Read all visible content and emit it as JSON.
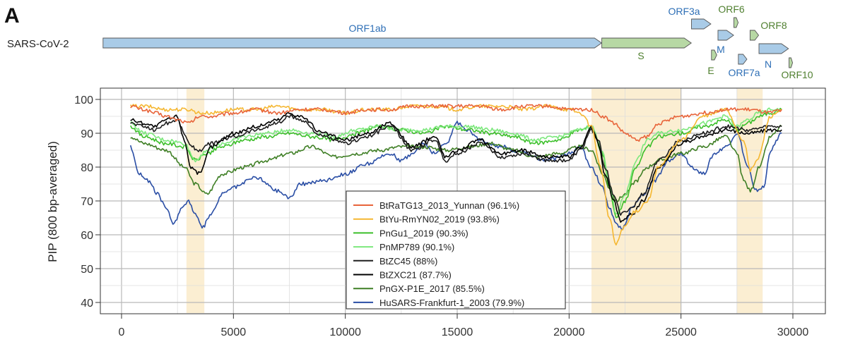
{
  "panel_label": "A",
  "genome": {
    "name": "SARS-CoV-2",
    "genes": [
      {
        "label": "ORF1ab",
        "start": 266,
        "end": 21555,
        "color": "#a9cbe7",
        "text_color": "#2e6fb6",
        "label_pos": "above"
      },
      {
        "label": "S",
        "start": 21563,
        "end": 25384,
        "color": "#b7d8a4",
        "text_color": "#4f7f2f",
        "label_pos": "below"
      },
      {
        "label": "ORF3a",
        "start": 25393,
        "end": 26220,
        "color": "#a9cbe7",
        "text_color": "#2e6fb6",
        "label_pos": "above"
      },
      {
        "label": "E",
        "start": 26245,
        "end": 26472,
        "color": "#b7d8a4",
        "text_color": "#4f7f2f",
        "label_pos": "below"
      },
      {
        "label": "M",
        "start": 26523,
        "end": 27191,
        "color": "#a9cbe7",
        "text_color": "#2e6fb6",
        "label_pos": "below"
      },
      {
        "label": "ORF6",
        "start": 27202,
        "end": 27387,
        "color": "#b7d8a4",
        "text_color": "#4f7f2f",
        "label_pos": "above"
      },
      {
        "label": "ORF7a",
        "start": 27394,
        "end": 27759,
        "color": "#a9cbe7",
        "text_color": "#2e6fb6",
        "label_pos": "below"
      },
      {
        "label": "ORF8",
        "start": 27894,
        "end": 28259,
        "color": "#b7d8a4",
        "text_color": "#4f7f2f",
        "label_pos": "above"
      },
      {
        "label": "N",
        "start": 28274,
        "end": 29533,
        "color": "#a9cbe7",
        "text_color": "#2e6fb6",
        "label_pos": "below"
      },
      {
        "label": "ORF10",
        "start": 29558,
        "end": 29674,
        "color": "#b7d8a4",
        "text_color": "#4f7f2f",
        "label_pos": "below"
      }
    ]
  },
  "chart_data": {
    "type": "line",
    "title": "",
    "xlabel": "",
    "ylabel": "PIP (800 bp-averaged)",
    "xlim": [
      0,
      30000
    ],
    "ylim": [
      38,
      101
    ],
    "xticks": [
      0,
      5000,
      10000,
      15000,
      20000,
      25000,
      30000
    ],
    "yticks": [
      40,
      50,
      60,
      70,
      80,
      90,
      100
    ],
    "grid": true,
    "highlight_regions": [
      [
        2900,
        3700
      ],
      [
        21000,
        25000
      ],
      [
        27500,
        28650
      ]
    ],
    "highlight_color": "#fbeed2",
    "legend_position": "bottom-center",
    "series": [
      {
        "name": "BtRaTG13_2013_Yunnan (96.1%)",
        "color": "#e8643a",
        "x": [
          400,
          1000,
          1500,
          2000,
          2500,
          3000,
          3500,
          4000,
          5000,
          6000,
          7000,
          8000,
          9000,
          10000,
          11000,
          12000,
          13000,
          14000,
          15000,
          16000,
          17000,
          18000,
          19000,
          20000,
          21000,
          21500,
          22000,
          22500,
          23000,
          23500,
          24000,
          25000,
          26000,
          27000,
          28000,
          29000,
          29500
        ],
        "y": [
          98,
          97,
          96,
          95,
          94,
          93,
          95,
          95,
          96,
          97,
          96,
          97,
          97,
          96,
          97,
          97,
          98,
          98,
          98,
          98,
          97,
          98,
          98,
          97,
          97,
          95,
          93,
          90,
          88,
          89,
          93,
          95,
          96,
          97,
          97,
          96,
          97
        ]
      },
      {
        "name": "BtYu-RmYN02_2019 (93.8%)",
        "color": "#f5b731",
        "x": [
          400,
          1000,
          2000,
          3000,
          3500,
          4000,
          5000,
          6000,
          7000,
          8000,
          9000,
          10000,
          11000,
          12000,
          13000,
          14000,
          15000,
          16000,
          17000,
          18000,
          19000,
          20000,
          20500,
          21000,
          21400,
          21800,
          22100,
          22400,
          23000,
          23500,
          24000,
          25000,
          26000,
          27000,
          27800,
          28100,
          28400,
          29000,
          29500
        ],
        "y": [
          98,
          98,
          97,
          97,
          96,
          96,
          97,
          97,
          98,
          97,
          97,
          96,
          97,
          97,
          98,
          98,
          97,
          98,
          98,
          97,
          98,
          97,
          96,
          92,
          80,
          65,
          57,
          62,
          67,
          70,
          80,
          88,
          95,
          97,
          88,
          79,
          82,
          95,
          97
        ]
      },
      {
        "name": "PnGu1_2019 (90.3%)",
        "color": "#3cbf2a",
        "x": [
          400,
          1000,
          2000,
          2800,
          3300,
          3800,
          4500,
          5500,
          6500,
          7500,
          8500,
          9500,
          10500,
          11500,
          12500,
          13500,
          14500,
          15500,
          16500,
          17500,
          18500,
          19500,
          20500,
          21000,
          21500,
          21800,
          22100,
          22500,
          23000,
          23500,
          24000,
          25000,
          26000,
          27000,
          27500,
          28000,
          28500,
          29000,
          29500
        ],
        "y": [
          92,
          89,
          87,
          86,
          82,
          84,
          86,
          88,
          89,
          90,
          89,
          88,
          90,
          92,
          91,
          90,
          92,
          91,
          90,
          89,
          87,
          88,
          91,
          92,
          84,
          74,
          65,
          70,
          80,
          86,
          89,
          90,
          92,
          94,
          91,
          93,
          95,
          96,
          97
        ]
      },
      {
        "name": "PnMP789 (90.1%)",
        "color": "#7de87d",
        "x": [
          400,
          1000,
          2000,
          2800,
          3300,
          3800,
          4500,
          5500,
          6500,
          7500,
          8500,
          9500,
          10500,
          11500,
          12500,
          13500,
          14500,
          15500,
          16500,
          17500,
          18500,
          19500,
          20500,
          21000,
          21500,
          21800,
          22100,
          22500,
          23000,
          23500,
          24000,
          25000,
          26000,
          27000,
          27500,
          28000,
          28500,
          29000,
          29500
        ],
        "y": [
          93,
          90,
          88,
          87,
          82,
          85,
          87,
          89,
          90,
          91,
          90,
          89,
          91,
          92,
          91,
          91,
          92,
          92,
          91,
          90,
          88,
          89,
          91,
          92,
          85,
          75,
          66,
          72,
          82,
          88,
          90,
          91,
          93,
          95,
          92,
          94,
          96,
          97,
          97
        ]
      },
      {
        "name": "BtZC45 (88%)",
        "color": "#1e1e1e",
        "x": [
          400,
          1000,
          1500,
          2000,
          2500,
          2800,
          3100,
          3500,
          4000,
          5000,
          6000,
          7000,
          7500,
          8000,
          9000,
          10000,
          11000,
          12000,
          13000,
          14000,
          14500,
          15000,
          16000,
          17000,
          18000,
          19000,
          20000,
          20500,
          21000,
          21300,
          21600,
          22000,
          22300,
          22800,
          23300,
          24000,
          25000,
          26000,
          27000,
          28000,
          29000,
          29500
        ],
        "y": [
          93,
          92,
          91,
          93,
          94,
          90,
          86,
          85,
          87,
          89,
          91,
          93,
          95,
          94,
          89,
          87,
          89,
          92,
          85,
          88,
          82,
          84,
          87,
          83,
          84,
          82,
          82,
          85,
          91,
          88,
          80,
          72,
          66,
          68,
          72,
          82,
          88,
          90,
          92,
          91,
          92,
          92
        ]
      },
      {
        "name": "BtZXC21 (87.7%)",
        "color": "#000000",
        "x": [
          400,
          1000,
          1500,
          2000,
          2500,
          2800,
          3100,
          3500,
          4000,
          5000,
          6000,
          7000,
          7500,
          8000,
          9000,
          10000,
          11000,
          12000,
          13000,
          14000,
          14500,
          15000,
          16000,
          17000,
          18000,
          19000,
          20000,
          20500,
          21000,
          21300,
          21600,
          22000,
          22300,
          22800,
          23300,
          24000,
          25000,
          26000,
          27000,
          28000,
          29000,
          29500
        ],
        "y": [
          94,
          93,
          92,
          94,
          95,
          88,
          80,
          78,
          86,
          90,
          92,
          94,
          96,
          95,
          90,
          88,
          90,
          93,
          86,
          89,
          83,
          85,
          88,
          84,
          85,
          83,
          83,
          86,
          92,
          87,
          78,
          70,
          64,
          66,
          70,
          80,
          87,
          89,
          91,
          90,
          91,
          91
        ]
      },
      {
        "name": "PnGX-P1E_2017 (85.5%)",
        "color": "#3f7f25",
        "x": [
          400,
          1000,
          2000,
          2800,
          3300,
          3800,
          4500,
          5500,
          6500,
          7500,
          8500,
          9500,
          10500,
          11500,
          12500,
          13500,
          14500,
          15500,
          16500,
          17500,
          18500,
          19500,
          20500,
          21000,
          21500,
          21800,
          22100,
          22500,
          23000,
          23500,
          24000,
          25000,
          26000,
          27000,
          27500,
          27800,
          28100,
          28500,
          29000,
          29500
        ],
        "y": [
          89,
          87,
          85,
          80,
          75,
          72,
          78,
          80,
          82,
          84,
          86,
          83,
          84,
          85,
          86,
          86,
          85,
          86,
          87,
          85,
          83,
          84,
          86,
          85,
          78,
          74,
          70,
          72,
          76,
          80,
          82,
          84,
          86,
          89,
          84,
          76,
          73,
          80,
          89,
          92
        ]
      },
      {
        "name": "HuSARS-Frankfurt-1_2003 (79.9%)",
        "color": "#2a4ea5",
        "x": [
          400,
          800,
          1200,
          1600,
          2000,
          2300,
          2700,
          3000,
          3300,
          3600,
          4000,
          4500,
          5000,
          6000,
          7000,
          7500,
          8000,
          9000,
          10000,
          11000,
          12000,
          12500,
          13000,
          13500,
          14000,
          14500,
          15000,
          15500,
          16000,
          17000,
          18000,
          19000,
          20000,
          20500,
          21000,
          21500,
          21800,
          22100,
          22400,
          22800,
          23300,
          23800,
          24500,
          25000,
          25500,
          26000,
          26500,
          27000,
          27500,
          28000,
          28300,
          28700,
          29000,
          29500
        ],
        "y": [
          86,
          78,
          76,
          72,
          68,
          63,
          68,
          70,
          66,
          62,
          66,
          72,
          74,
          77,
          73,
          71,
          75,
          76,
          78,
          81,
          84,
          82,
          84,
          87,
          84,
          87,
          93,
          91,
          88,
          86,
          84,
          82,
          84,
          86,
          80,
          74,
          68,
          63,
          62,
          68,
          72,
          76,
          82,
          84,
          80,
          78,
          84,
          86,
          90,
          80,
          73,
          74,
          85,
          90
        ]
      }
    ]
  }
}
